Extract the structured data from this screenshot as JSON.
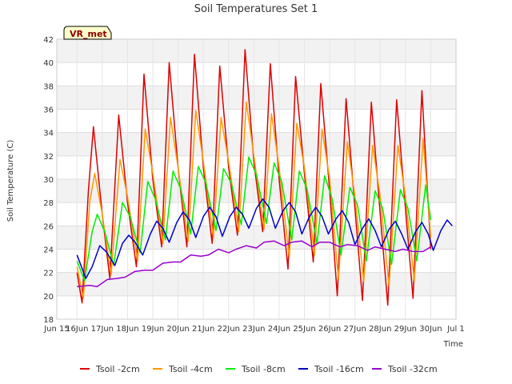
{
  "chart_data": {
    "type": "line",
    "title": "Soil Temperatures Set 1",
    "xlabel": "Time",
    "ylabel": "Soil Temperature (C)",
    "badge": "VR_met",
    "ylim": [
      18,
      42
    ],
    "yticks": [
      18,
      20,
      22,
      24,
      26,
      28,
      30,
      32,
      34,
      36,
      38,
      40,
      42
    ],
    "xlim": [
      -0.8,
      15.0
    ],
    "xticks": [
      {
        "pos": -0.8,
        "label": "Jun 15"
      },
      {
        "pos": 0.0,
        "label": "16Jun"
      },
      {
        "pos": 1.0,
        "label": "17Jun"
      },
      {
        "pos": 2.0,
        "label": "18Jun"
      },
      {
        "pos": 3.0,
        "label": "19Jun"
      },
      {
        "pos": 4.0,
        "label": "20Jun"
      },
      {
        "pos": 5.0,
        "label": "21Jun"
      },
      {
        "pos": 6.0,
        "label": "22Jun"
      },
      {
        "pos": 7.0,
        "label": "23Jun"
      },
      {
        "pos": 8.0,
        "label": "24Jun"
      },
      {
        "pos": 9.0,
        "label": "25Jun"
      },
      {
        "pos": 10.0,
        "label": "26Jun"
      },
      {
        "pos": 11.0,
        "label": "27Jun"
      },
      {
        "pos": 12.0,
        "label": "28Jun"
      },
      {
        "pos": 13.0,
        "label": "29Jun"
      },
      {
        "pos": 14.0,
        "label": "30Jun"
      },
      {
        "pos": 15.0,
        "label": "Jul 1"
      }
    ],
    "grid": true,
    "legend": "bottom",
    "series": [
      {
        "name": "Tsoil -2cm",
        "color": "#dd0000",
        "points": [
          [
            0.0,
            22.0
          ],
          [
            0.2,
            19.4
          ],
          [
            0.45,
            29.0
          ],
          [
            0.65,
            34.5
          ],
          [
            1.0,
            27.0
          ],
          [
            1.3,
            21.5
          ],
          [
            1.65,
            35.5
          ],
          [
            2.0,
            28.0
          ],
          [
            2.35,
            22.5
          ],
          [
            2.65,
            39.0
          ],
          [
            3.0,
            30.0
          ],
          [
            3.35,
            24.2
          ],
          [
            3.65,
            40.0
          ],
          [
            4.0,
            31.0
          ],
          [
            4.35,
            24.2
          ],
          [
            4.65,
            40.7
          ],
          [
            5.0,
            31.0
          ],
          [
            5.35,
            24.5
          ],
          [
            5.65,
            39.7
          ],
          [
            6.0,
            31.0
          ],
          [
            6.35,
            25.2
          ],
          [
            6.65,
            41.1
          ],
          [
            7.0,
            31.5
          ],
          [
            7.35,
            25.5
          ],
          [
            7.65,
            39.9
          ],
          [
            8.0,
            30.0
          ],
          [
            8.35,
            22.3
          ],
          [
            8.65,
            38.8
          ],
          [
            9.0,
            30.5
          ],
          [
            9.35,
            22.9
          ],
          [
            9.65,
            38.2
          ],
          [
            10.0,
            29.0
          ],
          [
            10.3,
            20.0
          ],
          [
            10.65,
            36.9
          ],
          [
            11.0,
            27.5
          ],
          [
            11.3,
            19.6
          ],
          [
            11.65,
            36.6
          ],
          [
            12.0,
            27.0
          ],
          [
            12.3,
            19.2
          ],
          [
            12.65,
            36.8
          ],
          [
            13.0,
            27.5
          ],
          [
            13.3,
            19.8
          ],
          [
            13.65,
            37.6
          ],
          [
            14.0,
            24.0
          ]
        ]
      },
      {
        "name": "Tsoil -4cm",
        "color": "#ff9900",
        "points": [
          [
            0.0,
            22.5
          ],
          [
            0.25,
            19.8
          ],
          [
            0.5,
            28.0
          ],
          [
            0.7,
            30.5
          ],
          [
            1.0,
            27.0
          ],
          [
            1.35,
            21.8
          ],
          [
            1.7,
            31.7
          ],
          [
            2.0,
            28.5
          ],
          [
            2.4,
            23.0
          ],
          [
            2.7,
            34.3
          ],
          [
            3.0,
            30.5
          ],
          [
            3.4,
            24.5
          ],
          [
            3.7,
            35.3
          ],
          [
            4.0,
            31.0
          ],
          [
            4.4,
            24.7
          ],
          [
            4.7,
            35.9
          ],
          [
            5.0,
            31.5
          ],
          [
            5.4,
            25.0
          ],
          [
            5.7,
            35.3
          ],
          [
            6.0,
            31.5
          ],
          [
            6.4,
            25.5
          ],
          [
            6.7,
            36.6
          ],
          [
            7.0,
            32.0
          ],
          [
            7.4,
            25.7
          ],
          [
            7.7,
            35.6
          ],
          [
            8.0,
            31.0
          ],
          [
            8.4,
            23.3
          ],
          [
            8.7,
            34.8
          ],
          [
            9.0,
            31.0
          ],
          [
            9.4,
            23.5
          ],
          [
            9.7,
            34.3
          ],
          [
            10.0,
            30.0
          ],
          [
            10.35,
            21.4
          ],
          [
            10.7,
            33.2
          ],
          [
            11.0,
            28.5
          ],
          [
            11.35,
            21.2
          ],
          [
            11.7,
            32.9
          ],
          [
            12.0,
            28.5
          ],
          [
            12.35,
            20.8
          ],
          [
            12.7,
            32.9
          ],
          [
            13.0,
            28.5
          ],
          [
            13.35,
            21.3
          ],
          [
            13.7,
            33.5
          ],
          [
            14.0,
            25.0
          ]
        ]
      },
      {
        "name": "Tsoil -8cm",
        "color": "#00ee00",
        "points": [
          [
            0.0,
            23.0
          ],
          [
            0.3,
            21.3
          ],
          [
            0.6,
            25.5
          ],
          [
            0.8,
            27.0
          ],
          [
            1.1,
            25.5
          ],
          [
            1.45,
            22.6
          ],
          [
            1.8,
            28.0
          ],
          [
            2.1,
            26.8
          ],
          [
            2.5,
            23.7
          ],
          [
            2.8,
            29.8
          ],
          [
            3.1,
            28.3
          ],
          [
            3.5,
            24.8
          ],
          [
            3.8,
            30.7
          ],
          [
            4.1,
            29.2
          ],
          [
            4.5,
            25.3
          ],
          [
            4.8,
            31.1
          ],
          [
            5.1,
            29.7
          ],
          [
            5.5,
            25.6
          ],
          [
            5.8,
            30.9
          ],
          [
            6.1,
            29.7
          ],
          [
            6.5,
            26.1
          ],
          [
            6.8,
            31.9
          ],
          [
            7.1,
            30.4
          ],
          [
            7.5,
            26.2
          ],
          [
            7.8,
            31.4
          ],
          [
            8.1,
            29.8
          ],
          [
            8.5,
            24.8
          ],
          [
            8.8,
            30.7
          ],
          [
            9.1,
            29.2
          ],
          [
            9.5,
            24.5
          ],
          [
            9.8,
            30.3
          ],
          [
            10.1,
            28.3
          ],
          [
            10.45,
            23.5
          ],
          [
            10.8,
            29.3
          ],
          [
            11.1,
            27.8
          ],
          [
            11.45,
            23.0
          ],
          [
            11.8,
            29.0
          ],
          [
            12.1,
            27.5
          ],
          [
            12.45,
            22.7
          ],
          [
            12.8,
            29.1
          ],
          [
            13.1,
            27.5
          ],
          [
            13.45,
            23.0
          ],
          [
            13.8,
            29.5
          ],
          [
            14.0,
            26.5
          ]
        ]
      },
      {
        "name": "Tsoil -16cm",
        "color": "#0000cc",
        "points": [
          [
            0.0,
            23.5
          ],
          [
            0.35,
            21.5
          ],
          [
            0.6,
            22.5
          ],
          [
            0.9,
            24.3
          ],
          [
            1.15,
            23.8
          ],
          [
            1.5,
            22.6
          ],
          [
            1.8,
            24.5
          ],
          [
            2.05,
            25.2
          ],
          [
            2.3,
            24.6
          ],
          [
            2.6,
            23.5
          ],
          [
            2.9,
            25.3
          ],
          [
            3.15,
            26.4
          ],
          [
            3.4,
            25.8
          ],
          [
            3.65,
            24.6
          ],
          [
            3.95,
            26.3
          ],
          [
            4.2,
            27.2
          ],
          [
            4.45,
            26.5
          ],
          [
            4.7,
            25.0
          ],
          [
            5.0,
            26.8
          ],
          [
            5.25,
            27.6
          ],
          [
            5.5,
            26.8
          ],
          [
            5.75,
            25.1
          ],
          [
            6.05,
            26.8
          ],
          [
            6.3,
            27.6
          ],
          [
            6.55,
            27.0
          ],
          [
            6.8,
            25.8
          ],
          [
            7.1,
            27.5
          ],
          [
            7.35,
            28.3
          ],
          [
            7.6,
            27.6
          ],
          [
            7.85,
            25.8
          ],
          [
            8.15,
            27.3
          ],
          [
            8.4,
            28.0
          ],
          [
            8.65,
            27.2
          ],
          [
            8.9,
            25.3
          ],
          [
            9.2,
            26.8
          ],
          [
            9.45,
            27.6
          ],
          [
            9.7,
            26.8
          ],
          [
            9.95,
            25.3
          ],
          [
            10.25,
            26.6
          ],
          [
            10.5,
            27.3
          ],
          [
            10.75,
            26.3
          ],
          [
            11.0,
            24.4
          ],
          [
            11.3,
            25.8
          ],
          [
            11.55,
            26.6
          ],
          [
            11.8,
            25.6
          ],
          [
            12.05,
            24.2
          ],
          [
            12.35,
            25.7
          ],
          [
            12.6,
            26.4
          ],
          [
            12.85,
            25.3
          ],
          [
            13.1,
            24.0
          ],
          [
            13.4,
            25.5
          ],
          [
            13.65,
            26.3
          ],
          [
            13.9,
            25.3
          ],
          [
            14.1,
            23.9
          ],
          [
            14.4,
            25.6
          ],
          [
            14.65,
            26.5
          ],
          [
            14.85,
            26.0
          ]
        ]
      },
      {
        "name": "Tsoil -32cm",
        "color": "#9900cc",
        "points": [
          [
            0.0,
            20.8
          ],
          [
            0.5,
            20.9
          ],
          [
            0.8,
            20.8
          ],
          [
            1.2,
            21.4
          ],
          [
            1.6,
            21.5
          ],
          [
            1.9,
            21.6
          ],
          [
            2.3,
            22.1
          ],
          [
            2.7,
            22.2
          ],
          [
            3.0,
            22.2
          ],
          [
            3.4,
            22.8
          ],
          [
            3.8,
            22.9
          ],
          [
            4.1,
            22.9
          ],
          [
            4.5,
            23.5
          ],
          [
            4.9,
            23.4
          ],
          [
            5.2,
            23.5
          ],
          [
            5.6,
            24.0
          ],
          [
            6.0,
            23.7
          ],
          [
            6.3,
            24.0
          ],
          [
            6.7,
            24.3
          ],
          [
            7.1,
            24.1
          ],
          [
            7.4,
            24.6
          ],
          [
            7.8,
            24.7
          ],
          [
            8.2,
            24.3
          ],
          [
            8.5,
            24.6
          ],
          [
            8.9,
            24.7
          ],
          [
            9.3,
            24.2
          ],
          [
            9.6,
            24.6
          ],
          [
            10.0,
            24.6
          ],
          [
            10.4,
            24.2
          ],
          [
            10.7,
            24.4
          ],
          [
            11.1,
            24.3
          ],
          [
            11.5,
            23.9
          ],
          [
            11.8,
            24.2
          ],
          [
            12.2,
            24.0
          ],
          [
            12.6,
            23.8
          ],
          [
            12.9,
            24.0
          ],
          [
            13.3,
            23.8
          ],
          [
            13.7,
            23.8
          ],
          [
            14.0,
            24.2
          ]
        ]
      }
    ]
  }
}
